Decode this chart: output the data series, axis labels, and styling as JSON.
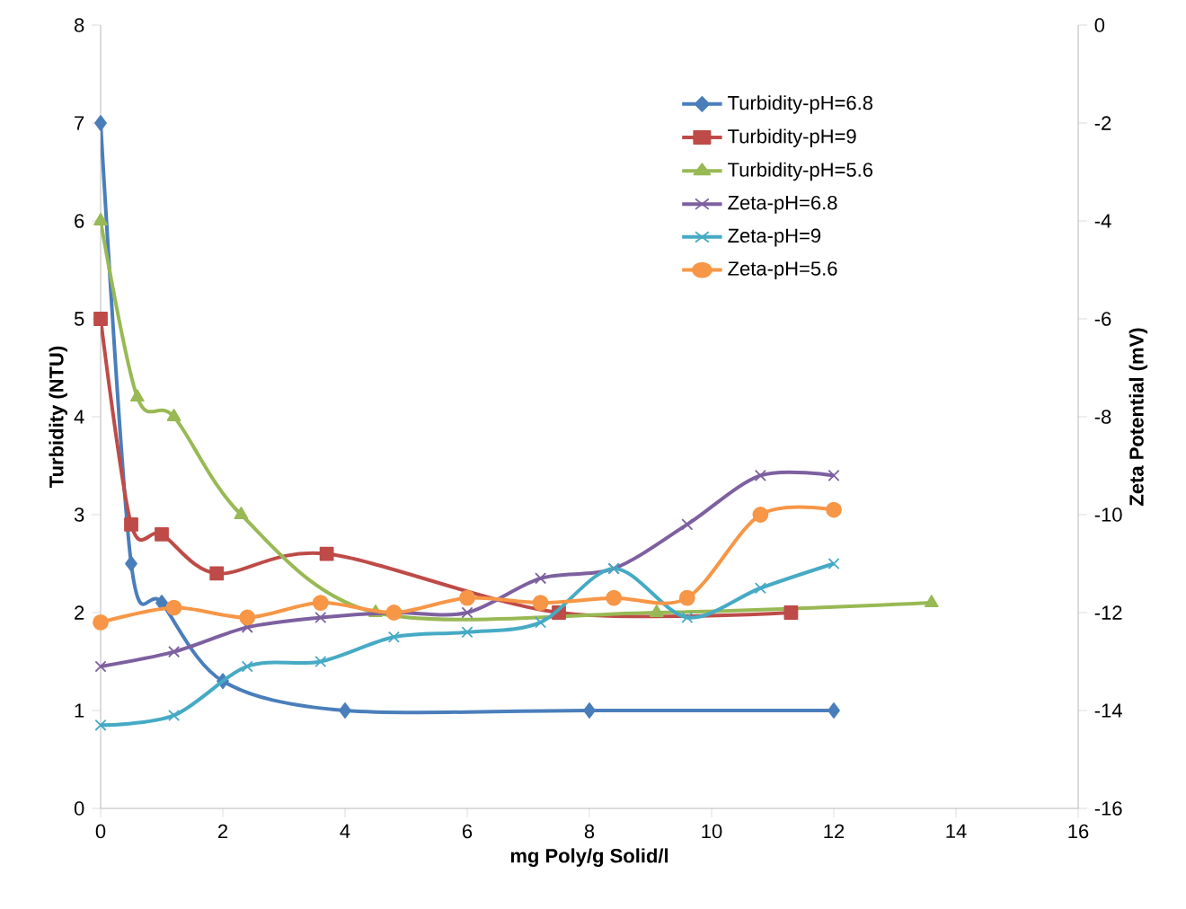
{
  "chart_data": {
    "type": "line",
    "xlabel": "mg Poly/g Solid/l",
    "ylabel": "Turbidity (NTU)",
    "y2label": "Zeta Potential (mV)",
    "xlim": [
      0,
      16
    ],
    "xticks": [
      0,
      2,
      4,
      6,
      8,
      10,
      12,
      14,
      16
    ],
    "ylim": [
      0,
      8
    ],
    "yticks": [
      0,
      1,
      2,
      3,
      4,
      5,
      6,
      7,
      8
    ],
    "y2lim": [
      -16,
      0
    ],
    "y2ticks": [
      -16,
      -14,
      -12,
      -10,
      -8,
      -6,
      -4,
      -2,
      0
    ],
    "legend": "top right",
    "grid": false,
    "series": [
      {
        "name": "Turbidity-pH=6.8",
        "color": "#4a7ebb",
        "marker": "diamond",
        "x": [
          0,
          0.5,
          1,
          2,
          4,
          8,
          12
        ],
        "values": [
          7,
          2.5,
          2.1,
          1.3,
          1.0,
          1.0,
          1.0
        ]
      },
      {
        "name": "Turbidity-pH=9",
        "color": "#be4b48",
        "marker": "square",
        "x": [
          0,
          0.5,
          1,
          1.9,
          3.7,
          7.5,
          11.3
        ],
        "values": [
          5,
          2.9,
          2.8,
          2.4,
          2.6,
          2.0,
          2.0
        ]
      },
      {
        "name": "Turbidity-pH=5.6",
        "color": "#98b954",
        "marker": "triangle",
        "x": [
          0,
          0.6,
          1.2,
          2.3,
          4.5,
          9.1,
          13.6
        ],
        "values": [
          6,
          4.2,
          4.0,
          3.0,
          2.0,
          2.0,
          2.1
        ]
      },
      {
        "name": "Zeta-pH=6.8",
        "color": "#7d60a0",
        "marker": "cross",
        "axis": "y2",
        "x": [
          0,
          1.2,
          2.4,
          3.6,
          4.8,
          6,
          7.2,
          8.4,
          9.6,
          10.8,
          12
        ],
        "values": [
          -13.1,
          -12.8,
          -12.3,
          -12.1,
          -12.0,
          -12.0,
          -11.3,
          -11.1,
          -10.2,
          -9.2,
          -9.2
        ]
      },
      {
        "name": "Zeta-pH=9",
        "color": "#46aac5",
        "marker": "cross",
        "axis": "y2",
        "x": [
          0,
          1.2,
          2.4,
          3.6,
          4.8,
          6,
          7.2,
          8.4,
          9.6,
          10.8,
          12
        ],
        "values": [
          -14.3,
          -14.1,
          -13.1,
          -13.0,
          -12.5,
          -12.4,
          -12.2,
          -11.1,
          -12.1,
          -11.5,
          -11.0
        ]
      },
      {
        "name": "Zeta-pH=5.6",
        "color": "#f79646",
        "marker": "circle",
        "axis": "y2",
        "x": [
          0,
          1.2,
          2.4,
          3.6,
          4.8,
          6,
          7.2,
          8.4,
          9.6,
          10.8,
          12
        ],
        "values": [
          -12.2,
          -11.9,
          -12.1,
          -11.8,
          -12.0,
          -11.7,
          -11.8,
          -11.7,
          -11.7,
          -10.0,
          -9.9
        ]
      }
    ]
  }
}
